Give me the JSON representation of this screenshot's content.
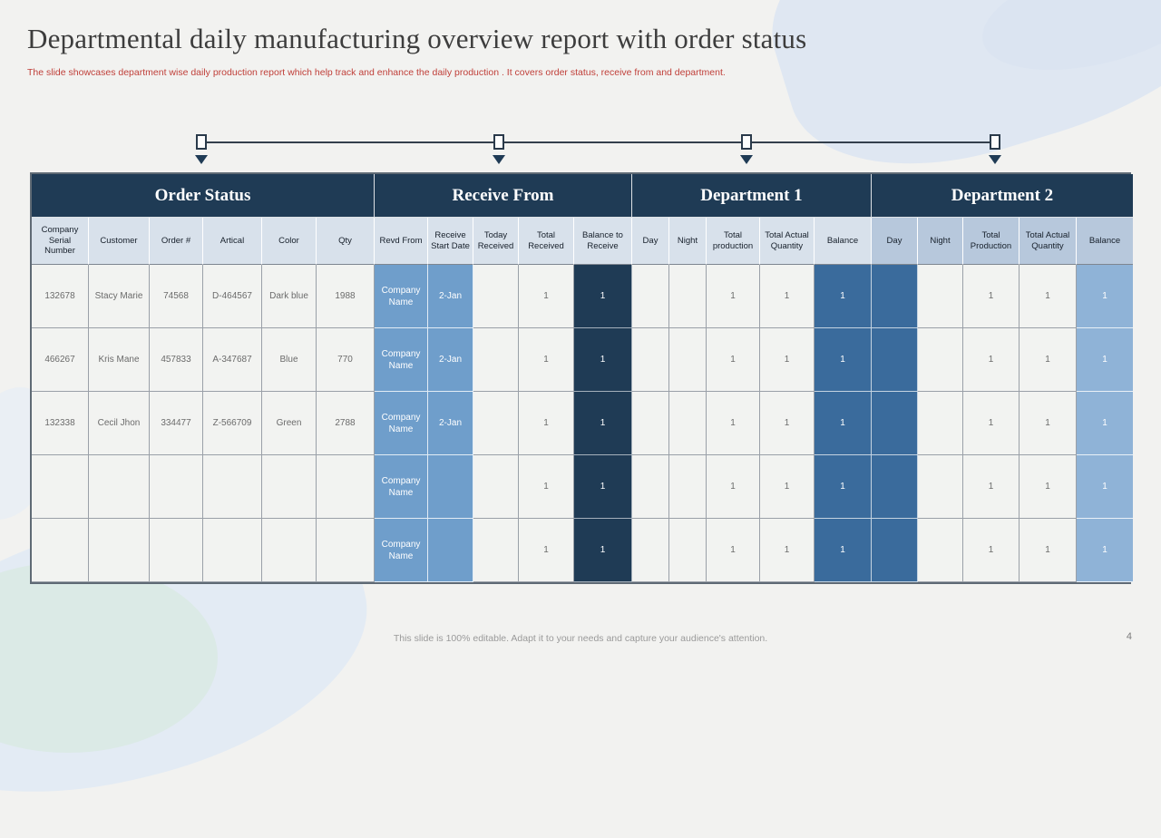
{
  "slide": {
    "title": "Departmental daily manufacturing overview report with order status",
    "subtitle": "The slide showcases department wise daily production report which help track and enhance the daily production . It covers order status, receive from and department.",
    "footer": "This slide is 100% editable. Adapt it to your needs and capture your audience's attention.",
    "page_number": "4"
  },
  "colors": {
    "header_navy": "#1F3B55",
    "medium_blue": "#6F9ECB",
    "steel_blue": "#3A6B9C",
    "light_blue": "#8FB3D7",
    "subheader_light": "#D8E1EB",
    "subheader_dept2": "#B7C8DC",
    "subtitle_red": "#C0403A",
    "slide_background": "#F2F2F0"
  },
  "table": {
    "groups": [
      {
        "label": "Order Status",
        "span": 6
      },
      {
        "label": "Receive From",
        "span": 5
      },
      {
        "label": "Department 1",
        "span": 5
      },
      {
        "label": "Department 2",
        "span": 5
      }
    ],
    "columns": [
      {
        "label": "Company Serial Number",
        "head": "light",
        "cell": "plain"
      },
      {
        "label": "Customer",
        "head": "light",
        "cell": "plain"
      },
      {
        "label": "Order #",
        "head": "light",
        "cell": "plain"
      },
      {
        "label": "Artical",
        "head": "light",
        "cell": "plain"
      },
      {
        "label": "Color",
        "head": "light",
        "cell": "plain"
      },
      {
        "label": "Qty",
        "head": "light",
        "cell": "plain"
      },
      {
        "label": "Revd From",
        "head": "light",
        "cell": "medblue"
      },
      {
        "label": "Receive Start Date",
        "head": "light",
        "cell": "medblue"
      },
      {
        "label": "Today Received",
        "head": "light",
        "cell": "plain"
      },
      {
        "label": "Total Received",
        "head": "light",
        "cell": "plain"
      },
      {
        "label": "Balance to Receive",
        "head": "light",
        "cell": "navy"
      },
      {
        "label": "Day",
        "head": "light",
        "cell": "plain"
      },
      {
        "label": "Night",
        "head": "light",
        "cell": "plain"
      },
      {
        "label": "Total production",
        "head": "light",
        "cell": "plain"
      },
      {
        "label": "Total Actual Quantity",
        "head": "light",
        "cell": "plain"
      },
      {
        "label": "Balance",
        "head": "light",
        "cell": "steel"
      },
      {
        "label": "Day",
        "head": "dept2",
        "cell": "steel"
      },
      {
        "label": "Night",
        "head": "dept2",
        "cell": "plain"
      },
      {
        "label": "Total Production",
        "head": "dept2",
        "cell": "plain"
      },
      {
        "label": "Total Actual Quantity",
        "head": "dept2",
        "cell": "plain"
      },
      {
        "label": "Balance",
        "head": "dept2",
        "cell": "lightblue"
      }
    ],
    "rows": [
      [
        "132678",
        "Stacy Marie",
        "74568",
        "D-464567",
        "Dark blue",
        "1988",
        "Company Name",
        "2-Jan",
        "",
        "1",
        "1",
        "",
        "",
        "1",
        "1",
        "1",
        "",
        "",
        "1",
        "1",
        "1"
      ],
      [
        "466267",
        "Kris Mane",
        "457833",
        "A-347687",
        "Blue",
        "770",
        "Company Name",
        "2-Jan",
        "",
        "1",
        "1",
        "",
        "",
        "1",
        "1",
        "1",
        "",
        "",
        "1",
        "1",
        "1"
      ],
      [
        "132338",
        "Cecil Jhon",
        "334477",
        "Z-566709",
        "Green",
        "2788",
        "Company Name",
        "2-Jan",
        "",
        "1",
        "1",
        "",
        "",
        "1",
        "1",
        "1",
        "",
        "",
        "1",
        "1",
        "1"
      ],
      [
        "",
        "",
        "",
        "",
        "",
        "",
        "Company Name",
        "",
        "",
        "1",
        "1",
        "",
        "",
        "1",
        "1",
        "1",
        "",
        "",
        "1",
        "1",
        "1"
      ],
      [
        "",
        "",
        "",
        "",
        "",
        "",
        "Company Name",
        "",
        "",
        "1",
        "1",
        "",
        "",
        "1",
        "1",
        "1",
        "",
        "",
        "1",
        "1",
        "1"
      ]
    ]
  }
}
